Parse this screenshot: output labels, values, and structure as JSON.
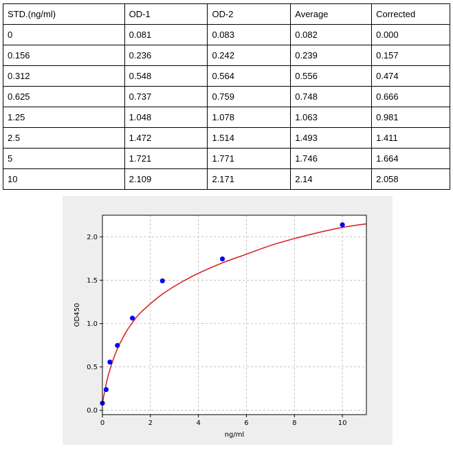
{
  "table": {
    "headers": [
      "STD.(ng/ml)",
      "OD-1",
      "OD-2",
      "Average",
      "Corrected"
    ],
    "rows": [
      [
        "0",
        "0.081",
        "0.083",
        "0.082",
        "0.000"
      ],
      [
        "0.156",
        "0.236",
        "0.242",
        "0.239",
        "0.157"
      ],
      [
        "0.312",
        "0.548",
        "0.564",
        "0.556",
        "0.474"
      ],
      [
        "0.625",
        "0.737",
        "0.759",
        "0.748",
        "0.666"
      ],
      [
        "1.25",
        "1.048",
        "1.078",
        "1.063",
        "0.981"
      ],
      [
        "2.5",
        "1.472",
        "1.514",
        "1.493",
        "1.411"
      ],
      [
        "5",
        "1.721",
        "1.771",
        "1.746",
        "1.664"
      ],
      [
        "10",
        "2.109",
        "2.171",
        "2.14",
        "2.058"
      ]
    ]
  },
  "chart_data": {
    "type": "scatter",
    "title": "",
    "xlabel": "ng/ml",
    "ylabel": "OD450",
    "xlim": [
      0,
      11
    ],
    "ylim": [
      -0.05,
      2.25
    ],
    "xticks": [
      0,
      2,
      4,
      6,
      8,
      10
    ],
    "yticks": [
      0.0,
      0.5,
      1.0,
      1.5,
      2.0
    ],
    "xtick_labels": [
      "0",
      "2",
      "4",
      "6",
      "8",
      "10"
    ],
    "ytick_labels": [
      "0.0",
      "0.5",
      "1.0",
      "1.5",
      "2.0"
    ],
    "grid": true,
    "series": [
      {
        "kind": "points",
        "color": "#0000ff",
        "x": [
          0,
          0.156,
          0.312,
          0.625,
          1.25,
          2.5,
          5,
          10
        ],
        "y": [
          0.082,
          0.239,
          0.556,
          0.748,
          1.063,
          1.493,
          1.746,
          2.14
        ]
      },
      {
        "kind": "fitted-curve",
        "color": "#d62728",
        "x": [
          0,
          0.156,
          0.312,
          0.625,
          1,
          1.25,
          1.5,
          2,
          2.5,
          3,
          3.5,
          4,
          5,
          6,
          7,
          8,
          9,
          10,
          11
        ],
        "y": [
          0.082,
          0.3,
          0.47,
          0.71,
          0.91,
          1.01,
          1.1,
          1.23,
          1.34,
          1.43,
          1.51,
          1.58,
          1.7,
          1.8,
          1.9,
          1.98,
          2.05,
          2.11,
          2.15
        ]
      }
    ]
  }
}
